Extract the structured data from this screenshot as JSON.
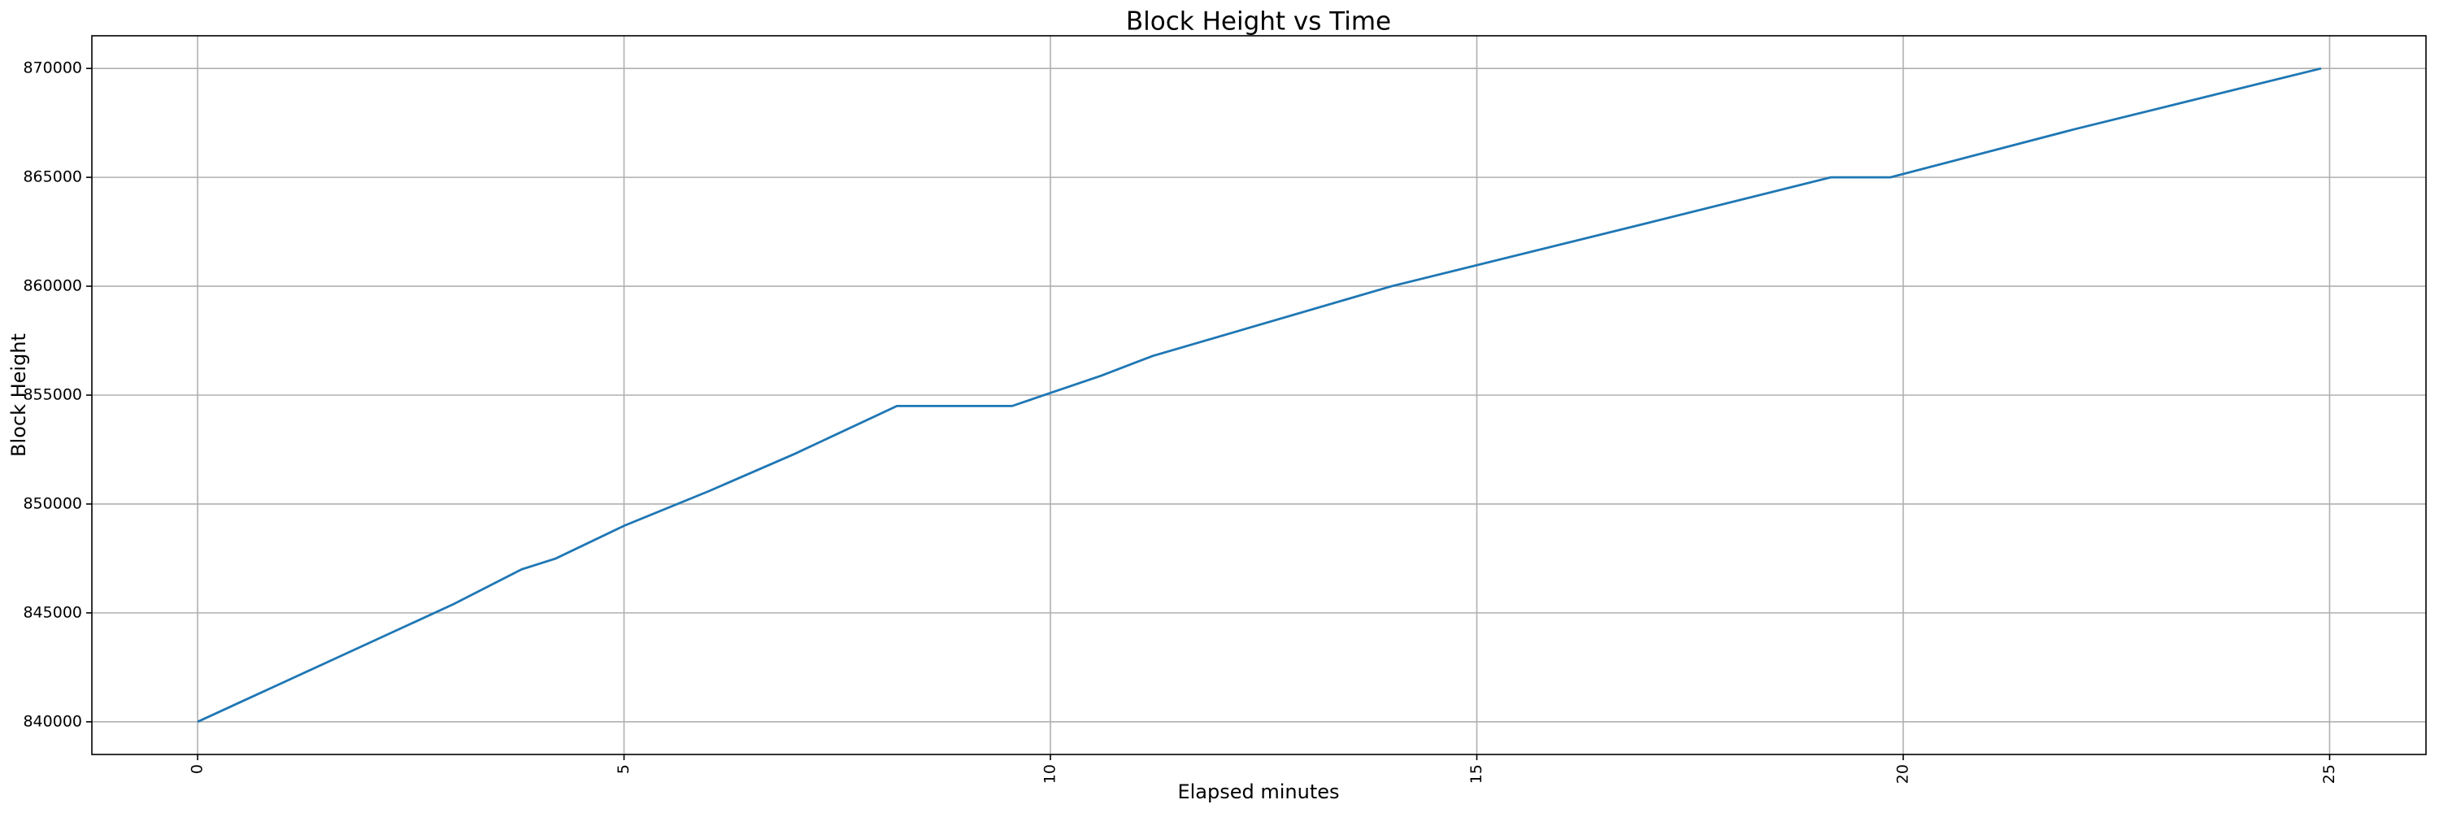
{
  "chart_data": {
    "type": "line",
    "title": "Block Height vs Time",
    "x_label": "Elapsed minutes",
    "y_label": "Block Height",
    "series": [
      {
        "name": "Block Height",
        "color": "#1f77b4",
        "x": [
          0,
          0.5,
          1.0,
          1.5,
          2.0,
          2.5,
          3.0,
          3.8,
          4.2,
          5.0,
          6.0,
          7.0,
          8.2,
          9.55,
          10.0,
          10.6,
          11.2,
          14.0,
          17.0,
          19.15,
          19.85,
          22.0,
          24.9
        ],
        "values": [
          840000,
          840900,
          841800,
          842700,
          843600,
          844500,
          845400,
          847000,
          847500,
          849000,
          850600,
          852300,
          854500,
          854500,
          855100,
          855900,
          856800,
          860000,
          862900,
          865000,
          865000,
          867200,
          870000
        ]
      }
    ],
    "xlim": [
      -1.24,
      26.13
    ],
    "xticks": [
      0,
      5,
      10,
      15,
      20,
      25
    ],
    "ylim": [
      838500,
      871500
    ],
    "yticks": [
      840000,
      845000,
      850000,
      855000,
      860000,
      865000,
      870000
    ],
    "grid": true
  }
}
